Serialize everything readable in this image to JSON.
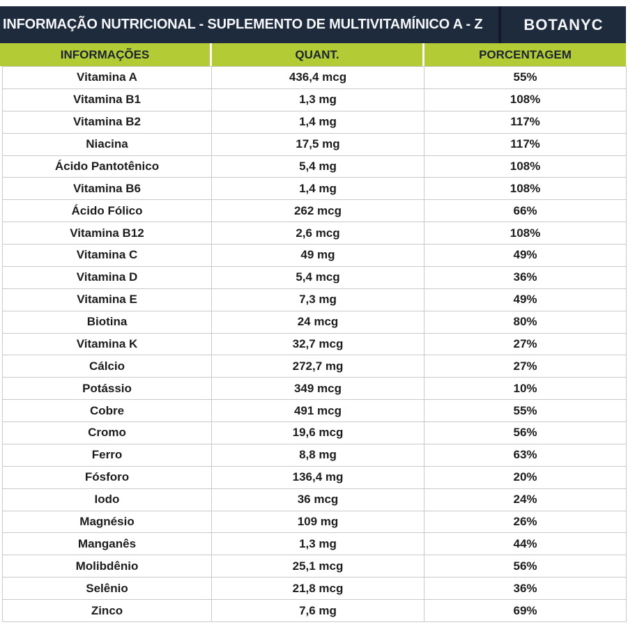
{
  "header": {
    "title": "INFORMAÇÃO NUTRICIONAL - SUPLEMENTO DE MULTIVITAMÍNICO A - Z",
    "brand": "BOTANYC"
  },
  "colors": {
    "navy": "#1e2b3d",
    "green": "#b3cb34",
    "divider_dark": "#121a26",
    "row_border": "#c9c9c9",
    "text_dark": "#1c1c1c",
    "text_light": "#f4f6f8",
    "header_text": "#1b2430"
  },
  "table": {
    "columns": [
      "INFORMAÇÕES",
      "QUANT.",
      "PORCENTAGEM"
    ],
    "rows": [
      {
        "name": "Vitamina A",
        "quantity": "436,4 mcg",
        "percentage": "55%"
      },
      {
        "name": "Vitamina B1",
        "quantity": "1,3 mg",
        "percentage": "108%"
      },
      {
        "name": "Vitamina B2",
        "quantity": "1,4 mg",
        "percentage": "117%"
      },
      {
        "name": "Niacina",
        "quantity": "17,5 mg",
        "percentage": "117%"
      },
      {
        "name": "Ácido Pantotênico",
        "quantity": "5,4 mg",
        "percentage": "108%"
      },
      {
        "name": "Vitamina B6",
        "quantity": "1,4 mg",
        "percentage": "108%"
      },
      {
        "name": "Ácido Fólico",
        "quantity": "262 mcg",
        "percentage": "66%"
      },
      {
        "name": "Vitamina B12",
        "quantity": "2,6 mcg",
        "percentage": "108%"
      },
      {
        "name": "Vitamina C",
        "quantity": "49 mg",
        "percentage": "49%"
      },
      {
        "name": "Vitamina D",
        "quantity": "5,4 mcg",
        "percentage": "36%"
      },
      {
        "name": "Vitamina E",
        "quantity": "7,3 mg",
        "percentage": "49%"
      },
      {
        "name": "Biotina",
        "quantity": "24 mcg",
        "percentage": "80%"
      },
      {
        "name": "Vitamina K",
        "quantity": "32,7 mcg",
        "percentage": "27%"
      },
      {
        "name": "Cálcio",
        "quantity": "272,7 mg",
        "percentage": "27%"
      },
      {
        "name": "Potássio",
        "quantity": "349 mcg",
        "percentage": "10%"
      },
      {
        "name": "Cobre",
        "quantity": "491 mcg",
        "percentage": "55%"
      },
      {
        "name": "Cromo",
        "quantity": "19,6 mcg",
        "percentage": "56%"
      },
      {
        "name": "Ferro",
        "quantity": "8,8 mg",
        "percentage": "63%"
      },
      {
        "name": "Fósforo",
        "quantity": "136,4 mg",
        "percentage": "20%"
      },
      {
        "name": "Iodo",
        "quantity": "36 mcg",
        "percentage": "24%"
      },
      {
        "name": "Magnésio",
        "quantity": "109 mg",
        "percentage": "26%"
      },
      {
        "name": "Manganês",
        "quantity": "1,3 mg",
        "percentage": "44%"
      },
      {
        "name": "Molibdênio",
        "quantity": "25,1 mcg",
        "percentage": "56%"
      },
      {
        "name": "Selênio",
        "quantity": "21,8 mcg",
        "percentage": "36%"
      },
      {
        "name": "Zinco",
        "quantity": "7,6 mg",
        "percentage": "69%"
      }
    ]
  }
}
